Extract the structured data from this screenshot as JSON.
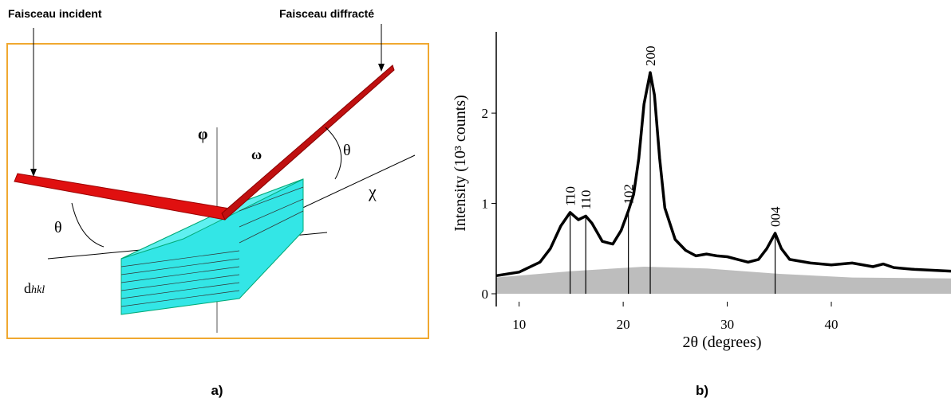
{
  "diagram": {
    "incident_label": "Faisceau incident",
    "diffracted_label": "Faisceau diffracté",
    "phi": "φ",
    "omega": "ω",
    "theta_left": "θ",
    "theta_right": "θ",
    "chi": "χ",
    "d_label": "d",
    "d_sub": "hkl",
    "caption": "a)"
  },
  "chart_data": {
    "type": "line",
    "caption": "b)",
    "xlabel": "2θ (degrees)",
    "ylabel": "Intensity (10³ counts)",
    "xlim": [
      7.8,
      51.5
    ],
    "ylim": [
      0,
      2.9
    ],
    "xticks": [
      10,
      20,
      30,
      40
    ],
    "yticks": [
      0,
      1,
      2
    ],
    "series": [
      {
        "color": "#bdbdbd",
        "fill": true,
        "x": [
          7.8,
          15,
          22,
          28,
          35,
          42,
          51.5
        ],
        "values": [
          0.18,
          0.25,
          0.3,
          0.28,
          0.22,
          0.18,
          0.17
        ]
      },
      {
        "color": "#000000",
        "fill": false,
        "x": [
          7.8,
          10,
          12,
          13,
          14,
          14.9,
          15.7,
          16.4,
          17,
          18,
          19,
          19.8,
          20.5,
          21,
          21.5,
          22,
          22.6,
          23,
          23.5,
          24,
          25,
          26,
          27,
          28,
          29,
          30,
          31,
          32,
          33,
          33.8,
          34.6,
          35.2,
          36,
          38,
          40,
          42,
          44,
          45,
          46,
          48,
          51.5
        ],
        "values": [
          0.2,
          0.24,
          0.35,
          0.5,
          0.75,
          0.9,
          0.82,
          0.86,
          0.78,
          0.58,
          0.55,
          0.7,
          0.92,
          1.1,
          1.5,
          2.1,
          2.45,
          2.2,
          1.5,
          0.95,
          0.6,
          0.48,
          0.42,
          0.44,
          0.42,
          0.41,
          0.38,
          0.35,
          0.38,
          0.5,
          0.67,
          0.5,
          0.38,
          0.34,
          0.32,
          0.34,
          0.3,
          0.33,
          0.29,
          0.27,
          0.25
        ]
      }
    ],
    "annotations": [
      {
        "text": "1̄10",
        "x": 14.9,
        "y": 0.9
      },
      {
        "text": "110",
        "x": 16.4,
        "y": 0.86
      },
      {
        "text": "102",
        "x": 20.5,
        "y": 0.92
      },
      {
        "text": "200",
        "x": 22.6,
        "y": 2.45
      },
      {
        "text": "004",
        "x": 34.6,
        "y": 0.67
      }
    ]
  }
}
